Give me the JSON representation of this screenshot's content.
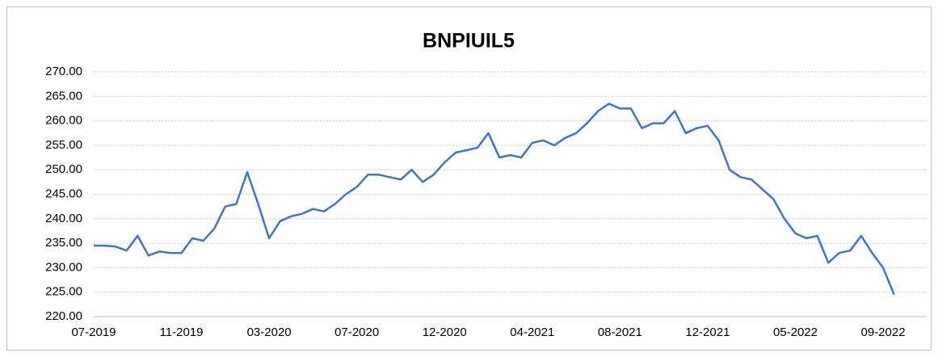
{
  "chart_data": {
    "type": "line",
    "title": "BNPIUIL5",
    "categories": [
      "07-2019",
      null,
      null,
      null,
      null,
      null,
      null,
      null,
      "11-2019",
      null,
      null,
      null,
      null,
      null,
      null,
      null,
      "03-2020",
      null,
      null,
      null,
      null,
      null,
      null,
      null,
      "07-2020",
      null,
      null,
      null,
      null,
      null,
      null,
      null,
      "12-2020",
      null,
      null,
      null,
      null,
      null,
      null,
      null,
      "04-2021",
      null,
      null,
      null,
      null,
      null,
      null,
      null,
      "08-2021",
      null,
      null,
      null,
      null,
      null,
      null,
      null,
      "12-2021",
      null,
      null,
      null,
      null,
      null,
      null,
      null,
      "05-2022",
      null,
      null,
      null,
      null,
      null,
      null,
      null,
      "09-2022",
      null
    ],
    "series": [
      {
        "name": "BNPIUIL5",
        "color": "#4472c4",
        "values": [
          234.5,
          234.5,
          234.3,
          233.5,
          236.5,
          232.5,
          233.3,
          233.0,
          233.0,
          236.0,
          235.5,
          238.0,
          242.5,
          243.0,
          249.5,
          243.0,
          236.0,
          239.5,
          240.5,
          241.0,
          242.0,
          241.5,
          243.0,
          245.0,
          246.5,
          249.0,
          249.0,
          248.5,
          248.0,
          250.0,
          247.5,
          249.0,
          251.5,
          253.5,
          254.0,
          254.5,
          257.5,
          252.5,
          253.0,
          252.5,
          255.5,
          256.0,
          255.0,
          256.5,
          257.5,
          259.5,
          262.0,
          263.5,
          262.5,
          262.5,
          258.5,
          259.5,
          259.5,
          262.0,
          257.5,
          258.5,
          259.0,
          256.0,
          250.0,
          248.5,
          248.0,
          246.0,
          244.0,
          240.0,
          237.0,
          236.0,
          236.5,
          231.0,
          233.0,
          233.5,
          236.5,
          233.0,
          230.0,
          224.5
        ]
      }
    ],
    "ylim": [
      220,
      270
    ],
    "yticks": [
      {
        "value": 220,
        "label": "220.00"
      },
      {
        "value": 225,
        "label": "225.00"
      },
      {
        "value": 230,
        "label": "230.00"
      },
      {
        "value": 235,
        "label": "235.00"
      },
      {
        "value": 240,
        "label": "240.00"
      },
      {
        "value": 245,
        "label": "245.00"
      },
      {
        "value": 250,
        "label": "250.00"
      },
      {
        "value": 255,
        "label": "255.00"
      },
      {
        "value": 260,
        "label": "260.00"
      },
      {
        "value": 265,
        "label": "265.00"
      },
      {
        "value": 270,
        "label": "270.00"
      }
    ],
    "grid": true
  }
}
